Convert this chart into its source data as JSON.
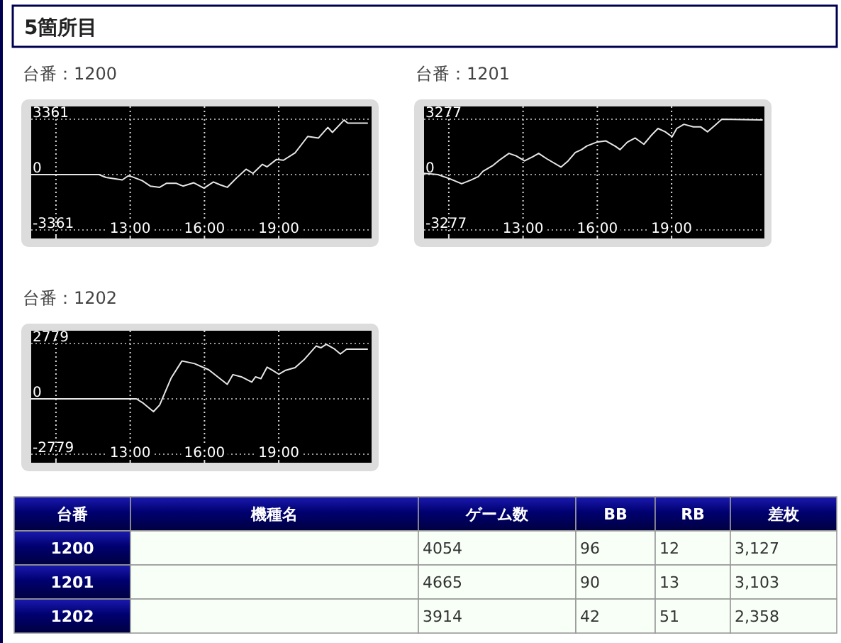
{
  "chart_data": [
    {
      "type": "other",
      "title": "5箇所目"
    },
    {
      "type": "line",
      "title": "台番：1200",
      "xlim": [
        9,
        22.75
      ],
      "ylim": [
        -3361,
        3361
      ],
      "xticks": [
        {
          "value": 10,
          "label": null
        },
        {
          "value": 13,
          "label": "13:00"
        },
        {
          "value": 16,
          "label": "16:00"
        },
        {
          "value": 19,
          "label": "19:00"
        }
      ],
      "yticks": [
        -3361,
        0,
        3361
      ],
      "grid": true,
      "ref_lines": [
        {
          "axis": "y",
          "value": 0,
          "color": "#cfcfcf",
          "line_style": "dotted"
        }
      ],
      "marker": "none",
      "line_style": "solid",
      "series": [
        {
          "color": "#e6e6e6",
          "x": [
            9,
            11.74,
            12.02,
            12.68,
            12.92,
            13.06,
            13.49,
            13.81,
            14.19,
            14.47,
            14.85,
            15.13,
            15.57,
            15.98,
            16.36,
            16.64,
            16.92,
            17.3,
            17.68,
            17.96,
            18.34,
            18.53,
            18.91,
            19.19,
            19.66,
            20.17,
            20.6,
            20.98,
            21.17,
            21.64,
            21.79,
            22.58
          ],
          "values": [
            0,
            0,
            -174,
            -324,
            -75,
            -125,
            -374,
            -697,
            -772,
            -523,
            -523,
            -697,
            -498,
            -822,
            -448,
            -623,
            -772,
            -199,
            324,
            75,
            623,
            473,
            921,
            872,
            1320,
            2316,
            2216,
            2863,
            2565,
            3312,
            3127,
            3127
          ]
        }
      ]
    },
    {
      "type": "line",
      "title": "台番：1201",
      "xlim": [
        9,
        22.75
      ],
      "ylim": [
        -3277,
        3277
      ],
      "xticks": [
        {
          "value": 10,
          "label": null
        },
        {
          "value": 13,
          "label": "13:00"
        },
        {
          "value": 16,
          "label": "16:00"
        },
        {
          "value": 19,
          "label": "19:00"
        }
      ],
      "yticks": [
        -3277,
        0,
        3277
      ],
      "grid": true,
      "ref_lines": [
        {
          "axis": "y",
          "value": 0,
          "color": "#cfcfcf",
          "line_style": "dotted"
        }
      ],
      "marker": "none",
      "line_style": "solid",
      "series": [
        {
          "color": "#e6e6e6",
          "x": [
            9,
            9.56,
            10.04,
            10.52,
            10.9,
            11.19,
            11.38,
            11.76,
            12.05,
            12.43,
            12.72,
            13.06,
            13.39,
            13.63,
            13.96,
            14.53,
            14.82,
            15.11,
            15.36,
            15.58,
            15.97,
            16.35,
            16.73,
            16.92,
            17.21,
            17.53,
            17.88,
            18.16,
            18.45,
            18.74,
            19.02,
            19.21,
            19.5,
            19.88,
            20.17,
            20.45,
            20.74,
            21.03,
            22.66
          ],
          "values": [
            74,
            0,
            -246,
            -541,
            -320,
            -123,
            197,
            517,
            861,
            1255,
            1107,
            812,
            1058,
            1255,
            935,
            443,
            812,
            1304,
            1476,
            1697,
            1919,
            1993,
            1673,
            1476,
            1919,
            2165,
            1796,
            2288,
            2731,
            2534,
            2239,
            2731,
            2977,
            2829,
            2829,
            2534,
            2903,
            3277,
            3240
          ]
        }
      ]
    },
    {
      "type": "line",
      "title": "台番：1202",
      "xlim": [
        9,
        22.75
      ],
      "ylim": [
        -2779,
        2779
      ],
      "xticks": [
        {
          "value": 10,
          "label": null
        },
        {
          "value": 13,
          "label": "13:00"
        },
        {
          "value": 16,
          "label": "16:00"
        },
        {
          "value": 19,
          "label": "19:00"
        }
      ],
      "yticks": [
        -2779,
        0,
        2779
      ],
      "grid": true,
      "ref_lines": [
        {
          "axis": "y",
          "value": 0,
          "color": "#cfcfcf",
          "line_style": "dotted"
        }
      ],
      "marker": "none",
      "line_style": "solid",
      "series": [
        {
          "color": "#e6e6e6",
          "x": [
            9,
            13.25,
            13.53,
            13.94,
            14.19,
            14.66,
            15.09,
            15.6,
            16.17,
            16.92,
            17.15,
            17.49,
            17.91,
            18.06,
            18.28,
            18.53,
            18.72,
            19.0,
            19.28,
            19.66,
            20.04,
            20.51,
            20.7,
            20.92,
            21.26,
            21.49,
            21.74,
            22.58
          ],
          "values": [
            0,
            0,
            -221,
            -641,
            -309,
            1061,
            1901,
            1768,
            1459,
            729,
            1216,
            1105,
            840,
            1105,
            1017,
            1591,
            1459,
            1238,
            1436,
            1569,
            1989,
            2652,
            2564,
            2740,
            2497,
            2254,
            2497,
            2497
          ]
        }
      ]
    },
    {
      "type": "other",
      "categories": [
        "台番",
        "機種名",
        "ゲーム数",
        "BB",
        "RB",
        "差枚"
      ],
      "cell_labels": [
        [
          "1200",
          null,
          "4054",
          "96",
          "12",
          "3,127"
        ],
        [
          "1201",
          null,
          "4665",
          "90",
          "13",
          "3,103"
        ],
        [
          "1202",
          null,
          "3914",
          "42",
          "51",
          "2,358"
        ]
      ]
    }
  ]
}
